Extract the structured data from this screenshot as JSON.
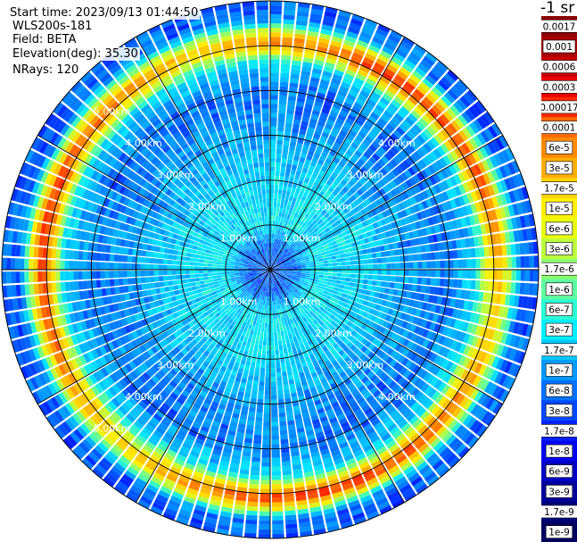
{
  "header": {
    "start_time": "Start time: 2023/09/13 01:44:50",
    "instrument": "WLS200s-181",
    "field": "Field: BETA",
    "elevation": "Elevation(deg): 35.30",
    "nrays": "NRays: 120"
  },
  "chart_data": {
    "type": "heatmap",
    "projection": "polar",
    "nrays": 120,
    "max_range_km": 6.0,
    "range_rings_km": [
      1,
      2,
      3,
      4,
      5
    ],
    "range_ring_labels": [
      "1.00km",
      "2.00km",
      "3.00km",
      "4.00km",
      "5.00km"
    ],
    "azimuth_spokes_deg": [
      0,
      30,
      60,
      90,
      120,
      150,
      180,
      210,
      240,
      270,
      300,
      330
    ],
    "radial_profile_log10_beta": [
      {
        "range_km": 0.0,
        "log10_beta": -8.0
      },
      {
        "range_km": 0.5,
        "log10_beta": -8.0
      },
      {
        "range_km": 1.0,
        "log10_beta": -7.3
      },
      {
        "range_km": 2.0,
        "log10_beta": -7.4
      },
      {
        "range_km": 3.0,
        "log10_beta": -7.7
      },
      {
        "range_km": 4.0,
        "log10_beta": -7.9
      },
      {
        "range_km": 4.6,
        "log10_beta": -7.4
      },
      {
        "range_km": 5.1,
        "log10_beta": -5.0
      },
      {
        "range_km": 5.6,
        "log10_beta": -7.9
      },
      {
        "range_km": 6.0,
        "log10_beta": -8.0
      }
    ],
    "colorbar": {
      "unit_label": "-1 sr",
      "labels": [
        "0.0017",
        "0.001",
        "0.0006",
        "0.0003",
        "0.00017",
        "0.0001",
        "6e-5",
        "3e-5",
        "1.7e-5",
        "1e-5",
        "6e-6",
        "3e-6",
        "1.7e-6",
        "1e-6",
        "6e-7",
        "3e-7",
        "1.7e-7",
        "1e-7",
        "6e-8",
        "3e-8",
        "1.7e-8",
        "1e-8",
        "6e-9",
        "3e-9",
        "1.7e-9",
        "1e-9"
      ],
      "colors": [
        "#8c0000",
        "#a80000",
        "#c80000",
        "#e60000",
        "#ff2a00",
        "#ff6a00",
        "#ff8a00",
        "#ffae00",
        "#ffd200",
        "#fff000",
        "#e8ff10",
        "#bcff3c",
        "#8cff6c",
        "#5effa0",
        "#2cffd4",
        "#00f0ff",
        "#00c8ff",
        "#009aff",
        "#0070ff",
        "#0048ff",
        "#0020ff",
        "#0000f0",
        "#0000c4",
        "#00009a",
        "#00007a",
        "#000060"
      ]
    }
  }
}
